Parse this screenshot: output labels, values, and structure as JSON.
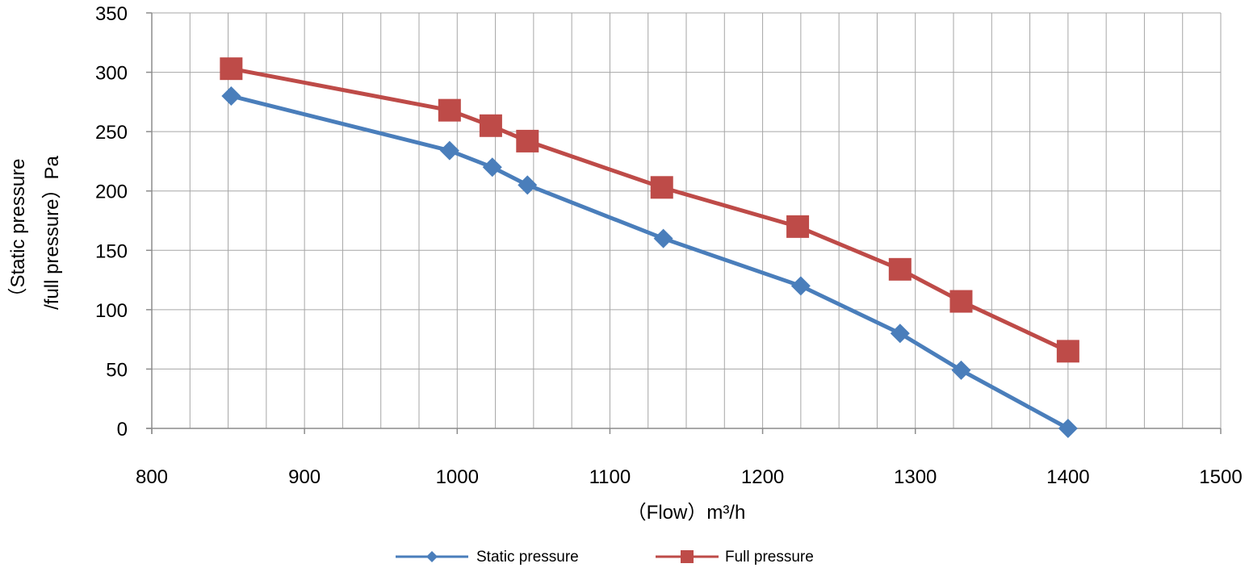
{
  "chart_data": {
    "type": "line",
    "xlabel": "（Flow）m³/h",
    "ylabel_lines": [
      "（Static pressure",
      "/full pressure）Pa"
    ],
    "xlim": [
      800,
      1500
    ],
    "ylim": [
      0,
      350
    ],
    "x_ticks": [
      800,
      900,
      1000,
      1100,
      1200,
      1300,
      1400,
      1500
    ],
    "y_ticks": [
      0,
      50,
      100,
      150,
      200,
      250,
      300,
      350
    ],
    "x_minor_step": 25,
    "grid": true,
    "legend_position": "bottom",
    "series": [
      {
        "name": "Static pressure",
        "color": "#4a7ebb",
        "marker": "diamond",
        "x": [
          852,
          995,
          1023,
          1046,
          1135,
          1225,
          1290,
          1330,
          1400
        ],
        "y": [
          280,
          234,
          220,
          205,
          160,
          120,
          80,
          49,
          0
        ]
      },
      {
        "name": "Full pressure",
        "color": "#be4b48",
        "marker": "square",
        "x": [
          852,
          995,
          1022,
          1046,
          1134,
          1223,
          1290,
          1330,
          1400
        ],
        "y": [
          303,
          268,
          255,
          242,
          203,
          170,
          134,
          107,
          65
        ]
      }
    ]
  }
}
